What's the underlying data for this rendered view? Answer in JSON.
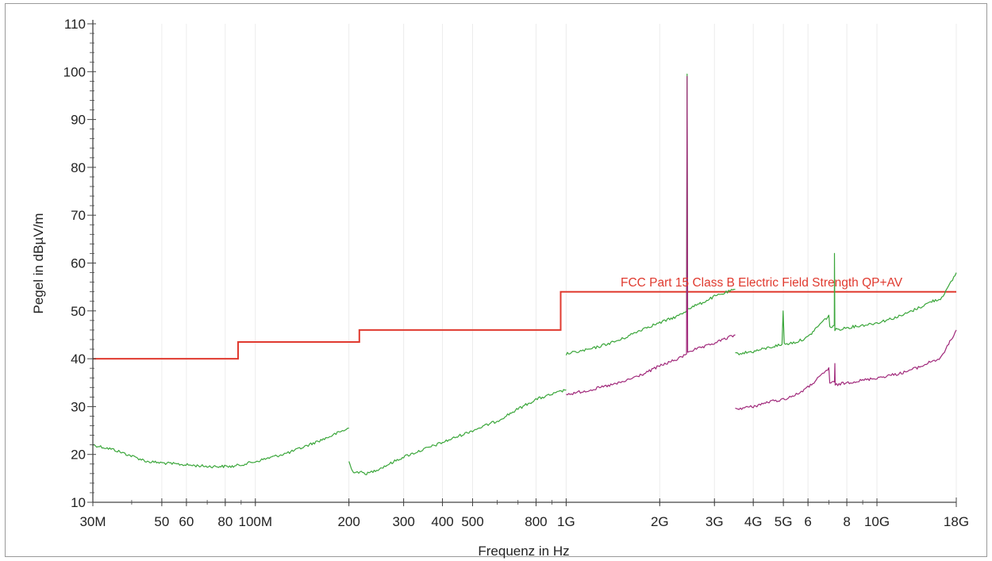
{
  "chart_data": {
    "type": "line",
    "xlabel": "Frequenz in Hz",
    "ylabel": "Pegel in dBµV/m",
    "x_scale": "log",
    "xlim": [
      30000000,
      18000000000
    ],
    "ylim": [
      10,
      110
    ],
    "y_ticks": [
      10,
      20,
      30,
      40,
      50,
      60,
      70,
      80,
      90,
      100,
      110
    ],
    "x_ticks": [
      {
        "value": 30000000,
        "label": "30M"
      },
      {
        "value": 50000000,
        "label": "50"
      },
      {
        "value": 60000000,
        "label": "60"
      },
      {
        "value": 80000000,
        "label": "80"
      },
      {
        "value": 100000000,
        "label": "100M"
      },
      {
        "value": 200000000,
        "label": "200"
      },
      {
        "value": 300000000,
        "label": "300"
      },
      {
        "value": 400000000,
        "label": "400"
      },
      {
        "value": 500000000,
        "label": "500"
      },
      {
        "value": 800000000,
        "label": "800"
      },
      {
        "value": 1000000000,
        "label": "1G"
      },
      {
        "value": 2000000000,
        "label": "2G"
      },
      {
        "value": 3000000000,
        "label": "3G"
      },
      {
        "value": 4000000000,
        "label": "4G"
      },
      {
        "value": 5000000000,
        "label": "5G"
      },
      {
        "value": 6000000000,
        "label": "6"
      },
      {
        "value": 8000000000,
        "label": "8"
      },
      {
        "value": 10000000000,
        "label": "10G"
      },
      {
        "value": 18000000000,
        "label": "18G"
      }
    ],
    "grid": true,
    "colors": {
      "limit": "#e03a2f",
      "peak": "#3aa63a",
      "average": "#a0287a",
      "axis": "#444444",
      "grid": "#ececec"
    },
    "limit_line": {
      "name": "FCC Part 15 Class B Electric Field Strength QP+AV",
      "points": [
        [
          30000000,
          40
        ],
        [
          88000000,
          40
        ],
        [
          88000000,
          43.5
        ],
        [
          216000000,
          43.5
        ],
        [
          216000000,
          46
        ],
        [
          960000000,
          46
        ],
        [
          960000000,
          54
        ],
        [
          18000000000,
          54
        ]
      ]
    },
    "series": [
      {
        "role": "peak",
        "segments": [
          [
            [
              30000000,
              22
            ],
            [
              35000000,
              21
            ],
            [
              45000000,
              18.5
            ],
            [
              55000000,
              18
            ],
            [
              70000000,
              17.5
            ],
            [
              85000000,
              17.5
            ],
            [
              100000000,
              18.5
            ],
            [
              130000000,
              20.5
            ],
            [
              170000000,
              23.5
            ],
            [
              200000000,
              25.5
            ]
          ],
          [
            [
              200000000,
              18.5
            ],
            [
              205000000,
              16.5
            ],
            [
              230000000,
              16
            ],
            [
              260000000,
              17.5
            ],
            [
              300000000,
              19.5
            ],
            [
              400000000,
              22.5
            ],
            [
              500000000,
              25
            ],
            [
              600000000,
              27
            ],
            [
              700000000,
              29.5
            ],
            [
              800000000,
              31.5
            ],
            [
              1000000000,
              33.5
            ]
          ],
          [
            [
              1000000000,
              41
            ],
            [
              1200000000,
              42
            ],
            [
              1500000000,
              44
            ],
            [
              1800000000,
              46.5
            ],
            [
              2000000000,
              47.5
            ],
            [
              2300000000,
              49
            ],
            [
              2440000000,
              50
            ],
            [
              2450000000,
              99.5
            ],
            [
              2460000000,
              50.5
            ],
            [
              2700000000,
              51.5
            ],
            [
              3000000000,
              53
            ],
            [
              3500000000,
              54.5
            ]
          ],
          [
            [
              3500000000,
              41
            ],
            [
              4000000000,
              41.5
            ],
            [
              4600000000,
              42.5
            ],
            [
              4950000000,
              43
            ],
            [
              4990000000,
              50
            ],
            [
              5030000000,
              43
            ],
            [
              5500000000,
              43.5
            ],
            [
              6000000000,
              44.5
            ],
            [
              6500000000,
              47
            ],
            [
              7000000000,
              49
            ],
            [
              7050000000,
              46.5
            ],
            [
              7290000000,
              47
            ],
            [
              7300000000,
              62
            ],
            [
              7320000000,
              46
            ],
            [
              8000000000,
              46.5
            ],
            [
              9000000000,
              47
            ],
            [
              10000000000,
              47.5
            ],
            [
              12000000000,
              49
            ],
            [
              14000000000,
              51
            ],
            [
              15000000000,
              52
            ],
            [
              16000000000,
              52.5
            ],
            [
              17000000000,
              55
            ],
            [
              18000000000,
              58
            ]
          ]
        ]
      },
      {
        "role": "average",
        "segments": [
          [
            [
              1000000000,
              32.5
            ],
            [
              1200000000,
              33.5
            ],
            [
              1500000000,
              35
            ],
            [
              1800000000,
              37
            ],
            [
              2000000000,
              38.5
            ],
            [
              2300000000,
              40
            ],
            [
              2440000000,
              41
            ],
            [
              2450000000,
              99
            ],
            [
              2460000000,
              41.5
            ],
            [
              2800000000,
              42.5
            ],
            [
              3200000000,
              44
            ],
            [
              3500000000,
              45
            ]
          ],
          [
            [
              3500000000,
              29.5
            ],
            [
              4000000000,
              30
            ],
            [
              4500000000,
              31
            ],
            [
              5000000000,
              31.5
            ],
            [
              5500000000,
              32.5
            ],
            [
              6000000000,
              34
            ],
            [
              6500000000,
              36
            ],
            [
              7000000000,
              38
            ],
            [
              7050000000,
              35
            ],
            [
              7300000000,
              35
            ],
            [
              7320000000,
              39
            ],
            [
              7340000000,
              34.5
            ],
            [
              8000000000,
              35
            ],
            [
              9000000000,
              35.5
            ],
            [
              10000000000,
              36
            ],
            [
              12000000000,
              37
            ],
            [
              14000000000,
              38.5
            ],
            [
              15000000000,
              39.5
            ],
            [
              16000000000,
              40
            ],
            [
              17000000000,
              43
            ],
            [
              18000000000,
              46
            ]
          ]
        ]
      }
    ]
  }
}
